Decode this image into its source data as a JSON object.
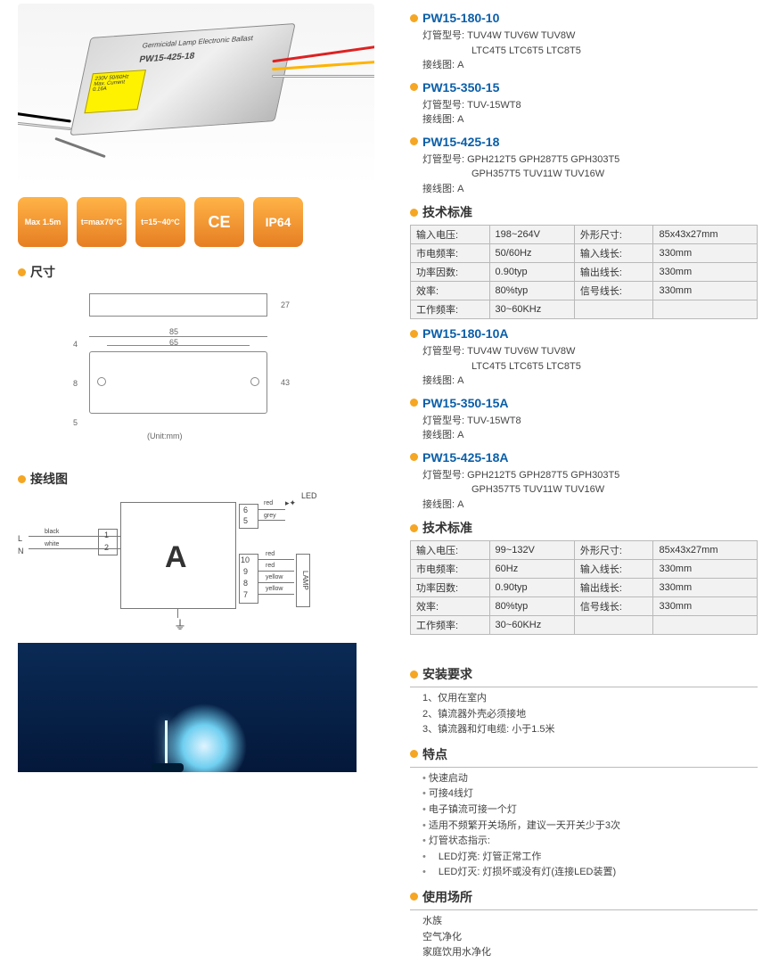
{
  "badges": [
    "Max 1.5m",
    "t=max70°C",
    "t=15~40°C",
    "CE",
    "IP64"
  ],
  "left": {
    "dim_title": "尺寸",
    "unit": "(Unit:mm)",
    "dims": {
      "w": "85",
      "w_inner": "65",
      "h": "43",
      "d": "27",
      "hole": "8",
      "margin": "4",
      "margin2": "5"
    },
    "wiring_title": "接线图",
    "wiring": {
      "L": "L",
      "N": "N",
      "black": "black",
      "white": "white",
      "n1": "1",
      "n2": "2",
      "n5": "5",
      "n6": "6",
      "n7": "7",
      "n8": "8",
      "n9": "9",
      "n10": "10",
      "red": "red",
      "grey": "grey",
      "yellow": "yellow",
      "A": "A",
      "LED": "LED",
      "LAMP": "LAMP",
      "gnd": "⏚"
    }
  },
  "products": [
    {
      "model": "PW15-180-10",
      "lines": [
        "灯管型号: TUV4W TUV6W TUV8W",
        "　　　　　LTC4T5 LTC6T5 LTC8T5",
        "接线图: A"
      ]
    },
    {
      "model": "PW15-350-15",
      "lines": [
        "灯管型号: TUV-15WT8",
        "接线图: A"
      ]
    },
    {
      "model": "PW15-425-18",
      "lines": [
        "灯管型号: GPH212T5 GPH287T5 GPH303T5",
        "　　　　　GPH357T5 TUV11W TUV16W",
        "接线图: A"
      ]
    }
  ],
  "spec1_title": "技术标准",
  "spec1": [
    [
      "输入电压:",
      "198~264V",
      "外形尺寸:",
      "85x43x27mm"
    ],
    [
      "市电频率:",
      "50/60Hz",
      "输入线长:",
      "330mm"
    ],
    [
      "功率因数:",
      "0.90typ",
      "输出线长:",
      "330mm"
    ],
    [
      "效率:",
      "80%typ",
      "信号线长:",
      "330mm"
    ],
    [
      "工作频率:",
      "30~60KHz",
      "",
      ""
    ]
  ],
  "productsA": [
    {
      "model": "PW15-180-10A",
      "lines": [
        "灯管型号: TUV4W TUV6W TUV8W",
        "　　　　　LTC4T5 LTC6T5 LTC8T5",
        "接线图: A"
      ]
    },
    {
      "model": "PW15-350-15A",
      "lines": [
        "灯管型号: TUV-15WT8",
        "接线图: A"
      ]
    },
    {
      "model": "PW15-425-18A",
      "lines": [
        "灯管型号: GPH212T5 GPH287T5 GPH303T5",
        "　　　　　GPH357T5 TUV11W TUV16W",
        "接线图: A"
      ]
    }
  ],
  "spec2_title": "技术标准",
  "spec2": [
    [
      "输入电压:",
      "99~132V",
      "外形尺寸:",
      "85x43x27mm"
    ],
    [
      "市电频率:",
      "60Hz",
      "输入线长:",
      "330mm"
    ],
    [
      "功率因数:",
      "0.90typ",
      "输出线长:",
      "330mm"
    ],
    [
      "效率:",
      "80%typ",
      "信号线长:",
      "330mm"
    ],
    [
      "工作频率:",
      "30~60KHz",
      "",
      ""
    ]
  ],
  "install_title": "安装要求",
  "install": [
    "1、仅用在室内",
    "2、镇流器外壳必须接地",
    "3、镇流器和灯电缆: 小于1.5米"
  ],
  "feature_title": "特点",
  "features": [
    "快速启动",
    "可接4线灯",
    "电子镇流可接一个灯",
    "适用不频繁开关场所，建议一天开关少于3次",
    "灯管状态指示:",
    "　LED灯亮: 灯管正常工作",
    "　LED灯灭: 灯损坏或没有灯(连接LED装置)"
  ],
  "usage_title": "使用场所",
  "usage": [
    "水族",
    "空气净化",
    "家庭饮用水净化"
  ],
  "device_label": {
    "line1": "230V 50/60Hz",
    "line2": "Max. Current 0.16A",
    "model": "PW15-425-18",
    "brand": "Germicidal Lamp Electronic Ballast"
  }
}
